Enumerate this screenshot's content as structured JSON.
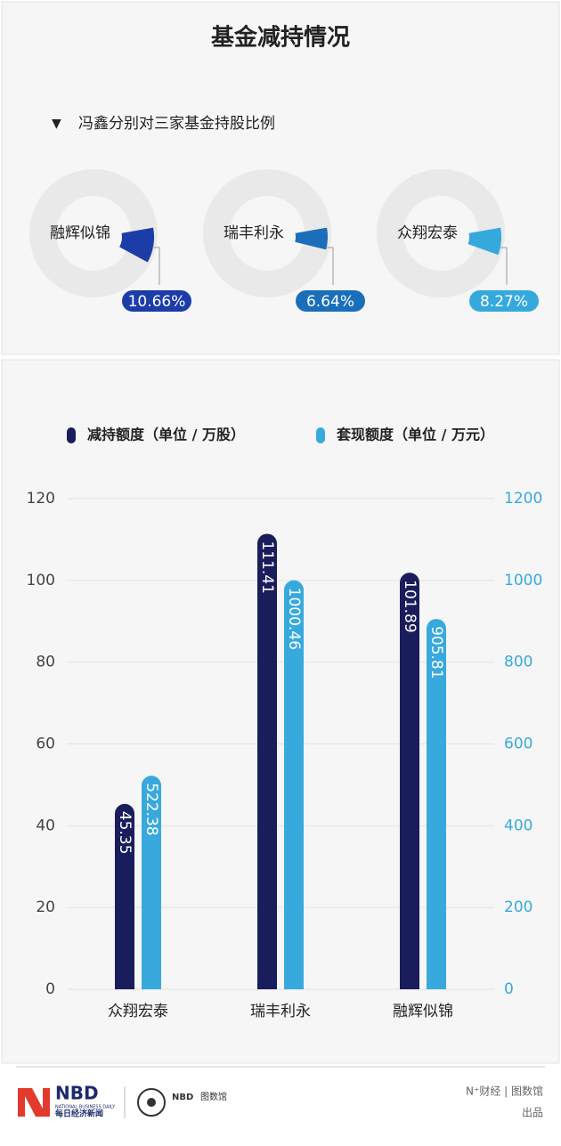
{
  "title": "基金减持情况",
  "chart_data": [
    {
      "type": "donut",
      "title": "冯鑫分别对三家基金持股比例",
      "categories": [
        "融辉似锦",
        "瑞丰利永",
        "众翔宏泰"
      ],
      "values": [
        10.66,
        6.64,
        8.27
      ],
      "value_labels": [
        "10.66%",
        "6.64%",
        "8.27%"
      ],
      "colors": [
        "#1c3ca8",
        "#1b6fba",
        "#35a9de"
      ]
    },
    {
      "type": "bar",
      "categories": [
        "众翔宏泰",
        "瑞丰利永",
        "融辉似锦"
      ],
      "series": [
        {
          "name": "减持额度（单位 / 万股）",
          "color": "#1a1d5c",
          "values": [
            45.35,
            111.41,
            101.89
          ]
        },
        {
          "name": "套现额度（单位 / 万元）",
          "color": "#38a9dc",
          "values": [
            522.38,
            1000.46,
            905.81
          ],
          "axis": "y2"
        }
      ],
      "ylim": [
        0,
        120
      ],
      "yticks": [
        0,
        20,
        40,
        60,
        80,
        100,
        120
      ],
      "y2lim": [
        0,
        1200
      ],
      "y2ticks": [
        0,
        200,
        400,
        600,
        800,
        1000,
        1200
      ],
      "grid": true
    }
  ],
  "footer": {
    "logo": "NBD",
    "logo_sub": "NATIONAL BUSINESS DAILY",
    "logo_cn": "每日经济新闻",
    "brand": "NBD",
    "brand_cn": "图数馆",
    "credit": "N⁺财经 | 图数馆",
    "credit_2": "出品"
  }
}
